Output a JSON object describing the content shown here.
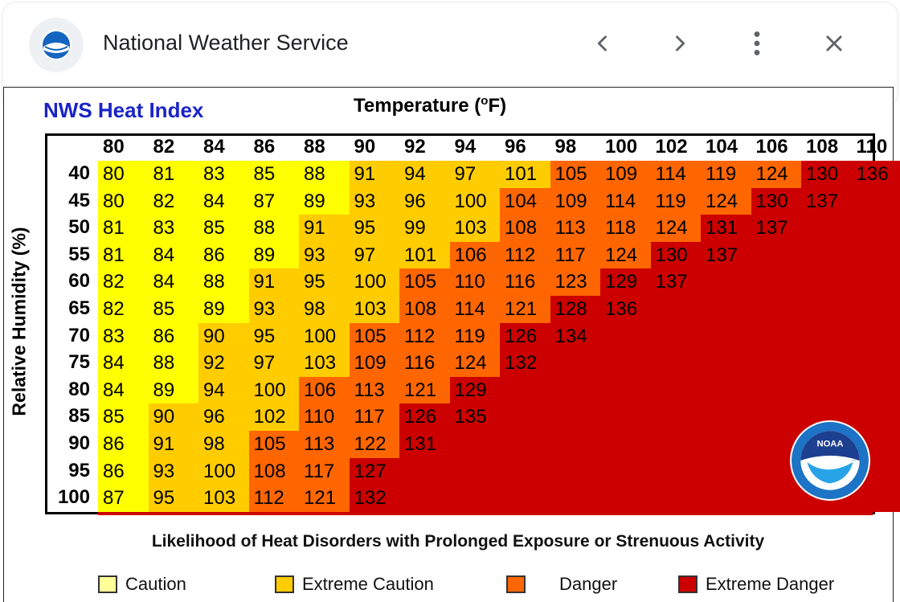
{
  "header": {
    "site_title": "National Weather Service",
    "back_icon": "chevron-left-icon",
    "forward_icon": "chevron-right-icon",
    "menu_icon": "more-vert-icon",
    "close_icon": "close-icon"
  },
  "chart": {
    "title": "NWS Heat Index",
    "x_title_prefix": "Temperature (",
    "x_title_degree": "o",
    "x_title_suffix": "F)",
    "y_title": "Relative Humidity (%)",
    "likelihood_text": "Likelihood of Heat Disorders with Prolonged Exposure or Strenuous Activity",
    "legend": [
      {
        "label": "Caution",
        "color": "#ffff99"
      },
      {
        "label": "Extreme Caution",
        "color": "#ffcc00"
      },
      {
        "label": "Danger",
        "color": "#ff6600"
      },
      {
        "label": "Extreme Danger",
        "color": "#cc0000"
      }
    ],
    "colors": {
      "caution": "#ffff00",
      "extreme_caution": "#ffcc00",
      "danger": "#ff6600",
      "extreme_danger": "#cc0000"
    }
  },
  "chart_data": {
    "type": "table",
    "title": "NWS Heat Index",
    "xlabel": "Temperature (oF)",
    "ylabel": "Relative Humidity (%)",
    "columns": [
      80,
      82,
      84,
      86,
      88,
      90,
      92,
      94,
      96,
      98,
      100,
      102,
      104,
      106,
      108,
      110
    ],
    "rows": [
      40,
      45,
      50,
      55,
      60,
      65,
      70,
      75,
      80,
      85,
      90,
      95,
      100
    ],
    "values": [
      [
        80,
        81,
        83,
        85,
        88,
        91,
        94,
        97,
        101,
        105,
        109,
        114,
        119,
        124,
        130,
        136
      ],
      [
        80,
        82,
        84,
        87,
        89,
        93,
        96,
        100,
        104,
        109,
        114,
        119,
        124,
        130,
        137,
        null
      ],
      [
        81,
        83,
        85,
        88,
        91,
        95,
        99,
        103,
        108,
        113,
        118,
        124,
        131,
        137,
        null,
        null
      ],
      [
        81,
        84,
        86,
        89,
        93,
        97,
        101,
        106,
        112,
        117,
        124,
        130,
        137,
        null,
        null,
        null
      ],
      [
        82,
        84,
        88,
        91,
        95,
        100,
        105,
        110,
        116,
        123,
        129,
        137,
        null,
        null,
        null,
        null
      ],
      [
        82,
        85,
        89,
        93,
        98,
        103,
        108,
        114,
        121,
        128,
        136,
        null,
        null,
        null,
        null,
        null
      ],
      [
        83,
        86,
        90,
        95,
        100,
        105,
        112,
        119,
        126,
        134,
        null,
        null,
        null,
        null,
        null,
        null
      ],
      [
        84,
        88,
        92,
        97,
        103,
        109,
        116,
        124,
        132,
        null,
        null,
        null,
        null,
        null,
        null,
        null
      ],
      [
        84,
        89,
        94,
        100,
        106,
        113,
        121,
        129,
        null,
        null,
        null,
        null,
        null,
        null,
        null,
        null
      ],
      [
        85,
        90,
        96,
        102,
        110,
        117,
        126,
        135,
        null,
        null,
        null,
        null,
        null,
        null,
        null,
        null
      ],
      [
        86,
        91,
        98,
        105,
        113,
        122,
        131,
        null,
        null,
        null,
        null,
        null,
        null,
        null,
        null,
        null
      ],
      [
        86,
        93,
        100,
        108,
        117,
        127,
        null,
        null,
        null,
        null,
        null,
        null,
        null,
        null,
        null,
        null
      ],
      [
        87,
        95,
        103,
        112,
        121,
        132,
        null,
        null,
        null,
        null,
        null,
        null,
        null,
        null,
        null,
        null
      ]
    ],
    "categories": [
      "Caution",
      "Extreme Caution",
      "Danger",
      "Extreme Danger"
    ]
  }
}
